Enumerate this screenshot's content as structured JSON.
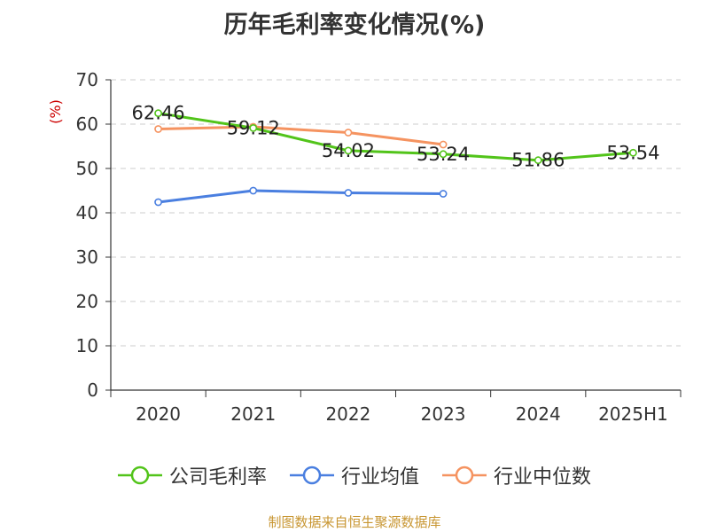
{
  "chart_data": {
    "type": "line",
    "title": "历年毛利率变化情况(%)",
    "ylabel": "(%)",
    "xlabel": "",
    "ylim": [
      0,
      70
    ],
    "yticks": [
      0,
      10,
      20,
      30,
      40,
      50,
      60,
      70
    ],
    "categories": [
      "2020",
      "2021",
      "2022",
      "2023",
      "2024",
      "2025H1"
    ],
    "grid": true,
    "legend_position": "bottom",
    "series": [
      {
        "name": "公司毛利率",
        "color": "#52c41a",
        "values": [
          62.46,
          59.12,
          54.02,
          53.24,
          51.86,
          53.54
        ],
        "data_labels": [
          "62.46",
          "59.12",
          "54.02",
          "53.24",
          "51.86",
          "53.54"
        ]
      },
      {
        "name": "行业均值",
        "color": "#4a7fe0",
        "values": [
          42.4,
          45.0,
          44.5,
          44.3,
          null,
          null
        ]
      },
      {
        "name": "行业中位数",
        "color": "#f59360",
        "values": [
          58.9,
          59.4,
          58.1,
          55.4,
          null,
          null
        ]
      }
    ]
  },
  "source_note": "制图数据来自恒生聚源数据库"
}
